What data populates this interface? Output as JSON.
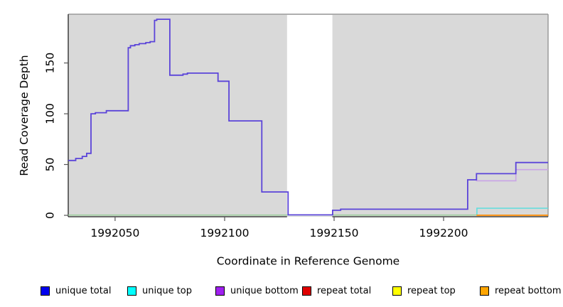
{
  "figure": {
    "background": "#ffffff"
  },
  "chart_data": {
    "type": "line",
    "subtype": "step-coverage-depth",
    "title": "",
    "xlabel": "Coordinate in Reference Genome",
    "ylabel": "Read Coverage Depth",
    "xlim": [
      1992028.6,
      1992247.7
    ],
    "ylim": [
      0,
      198
    ],
    "x_ticks": [
      1992050,
      1992100,
      1992150,
      1992200
    ],
    "y_ticks": [
      0,
      50,
      100,
      150
    ],
    "grid": "off",
    "plot_bg": "#d9d9d9",
    "gap_region": {
      "from": 1992128.5,
      "to": 1992149.2
    },
    "lines": [
      {
        "id": "baseline-overlap-line",
        "name": "unique top / repeat lines at baseline",
        "color": "#9bce9b",
        "width": 1.5,
        "x_end": 1992215,
        "steps": [
          [
            1992028.6,
            0.3
          ]
        ]
      },
      {
        "id": "unique-top-line",
        "name": "unique top",
        "color": "#5fdede",
        "width": 1.6,
        "x_end": 1992247.7,
        "steps": [
          [
            1992215,
            0.2
          ],
          [
            1992215.2,
            7
          ]
        ]
      },
      {
        "id": "repeat-bottom-line",
        "name": "repeat bottom",
        "color": "#ff8c00",
        "width": 1.8,
        "x_end": 1992247.7,
        "steps": [
          [
            1992215,
            0.1
          ]
        ]
      },
      {
        "id": "unique-bottom-line",
        "name": "unique bottom",
        "color": "#c9a3e6",
        "width": 1.6,
        "x_end": 1992247.7,
        "steps": [
          [
            1992211,
            35
          ],
          [
            1992215,
            34
          ],
          [
            1992233,
            45
          ]
        ]
      },
      {
        "id": "unique-total-line",
        "name": "unique total",
        "color": "#5b44d9",
        "width": 1.8,
        "x_end": 1992247.7,
        "steps": [
          [
            1992028.6,
            54
          ],
          [
            1992032,
            56
          ],
          [
            1992035,
            58
          ],
          [
            1992037,
            61
          ],
          [
            1992039,
            100
          ],
          [
            1992041,
            101
          ],
          [
            1992046,
            103
          ],
          [
            1992056,
            165
          ],
          [
            1992057,
            167
          ],
          [
            1992059,
            168
          ],
          [
            1992061,
            169
          ],
          [
            1992064,
            170
          ],
          [
            1992066,
            171
          ],
          [
            1992068,
            192
          ],
          [
            1992069,
            193
          ],
          [
            1992075,
            138
          ],
          [
            1992081,
            139
          ],
          [
            1992083,
            140
          ],
          [
            1992097,
            132
          ],
          [
            1992102,
            93
          ],
          [
            1992117,
            23
          ],
          [
            1992129,
            0.4
          ],
          [
            1992149.3,
            5
          ],
          [
            1992153,
            6
          ],
          [
            1992211,
            35
          ],
          [
            1992215,
            41
          ],
          [
            1992233,
            52
          ]
        ]
      }
    ]
  },
  "legend": {
    "items": [
      {
        "label": "unique total",
        "color": "#0000ee"
      },
      {
        "label": "unique top",
        "color": "#00ffff"
      },
      {
        "label": "unique bottom",
        "color": "#a020f0"
      },
      {
        "label": "repeat total",
        "color": "#e00000"
      },
      {
        "label": "repeat top",
        "color": "#ffff00"
      },
      {
        "label": "repeat bottom",
        "color": "#ffa500"
      }
    ]
  }
}
